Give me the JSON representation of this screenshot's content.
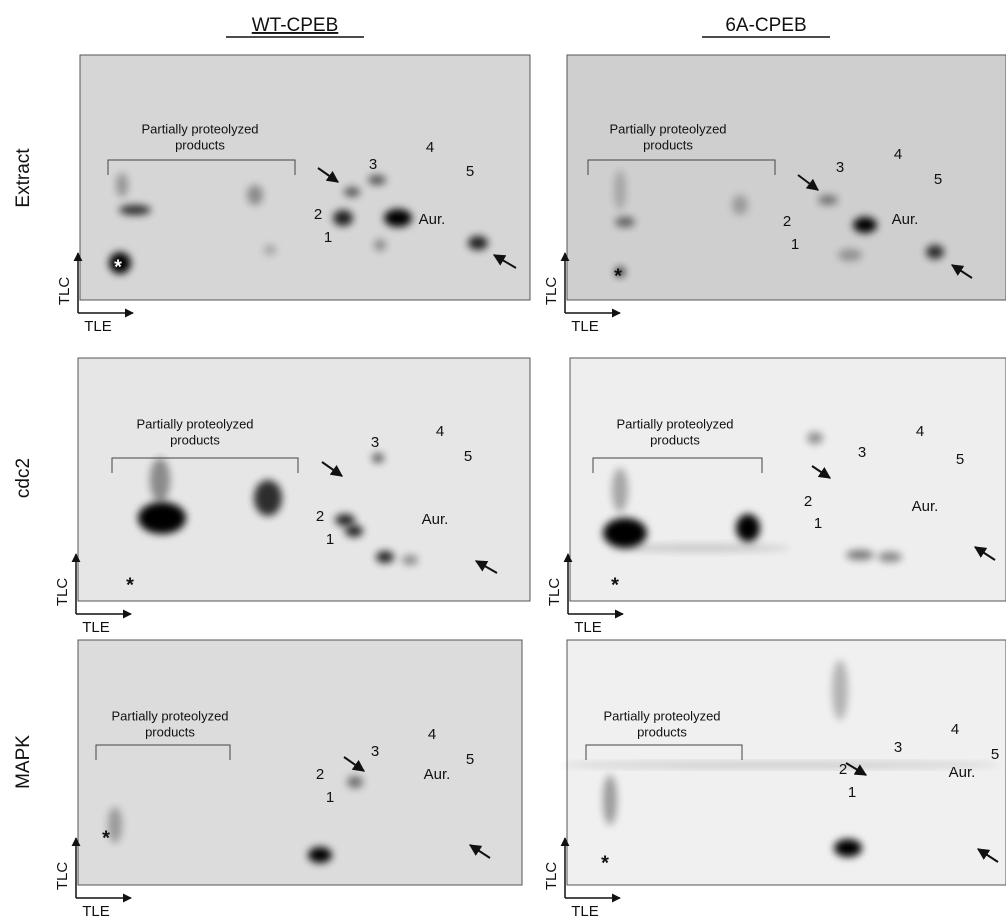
{
  "columns": [
    "WT-CPEB",
    "6A-CPEB"
  ],
  "rows": [
    "Extract",
    "cdc2",
    "MAPK"
  ],
  "axes": {
    "vertical": "TLC",
    "horizontal": "TLE"
  },
  "panels": [
    {
      "bracket_label": [
        "Partially proteolyzed",
        "products"
      ],
      "numbers": [
        "1",
        "2",
        "3",
        "4",
        "5"
      ],
      "kinase": "Aur.",
      "origin": "*"
    },
    {
      "bracket_label": [
        "Partially proteolyzed",
        "products"
      ],
      "numbers": [
        "1",
        "2",
        "3",
        "4",
        "5"
      ],
      "kinase": "Aur.",
      "origin": "*"
    },
    {
      "bracket_label": [
        "Partially proteolyzed",
        "products"
      ],
      "numbers": [
        "1",
        "2",
        "3",
        "4",
        "5"
      ],
      "kinase": "Aur.",
      "origin": "*"
    },
    {
      "bracket_label": [
        "Partially proteolyzed",
        "products"
      ],
      "numbers": [
        "1",
        "2",
        "3",
        "4",
        "5"
      ],
      "kinase": "Aur.",
      "origin": "*"
    },
    {
      "bracket_label": [
        "Partially proteolyzed",
        "products"
      ],
      "numbers": [
        "1",
        "2",
        "3",
        "4",
        "5"
      ],
      "kinase": "Aur.",
      "origin": "*"
    },
    {
      "bracket_label": [
        "Partially proteolyzed",
        "products"
      ],
      "numbers": [
        "1",
        "2",
        "3",
        "4",
        "5"
      ],
      "kinase": "Aur.",
      "origin": "*"
    }
  ]
}
